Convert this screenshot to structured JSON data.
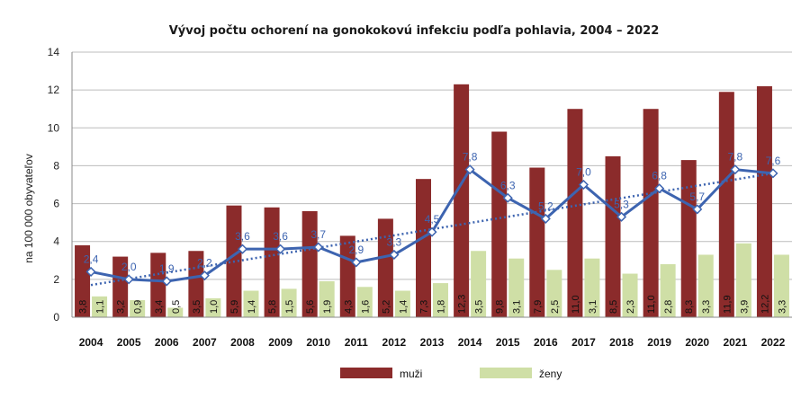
{
  "chart_data": {
    "type": "bar",
    "title": "Vývoj počtu ochorení na gonokokovú  infekciu  podľa pohlavia,  2004 – 2022",
    "ylabel": "na 100 000 obyvateľov",
    "xlabel": "",
    "ylim": [
      0,
      14
    ],
    "yticks": [
      0,
      2,
      4,
      6,
      8,
      10,
      12,
      14
    ],
    "categories": [
      "2004",
      "2005",
      "2006",
      "2007",
      "2008",
      "2009",
      "2010",
      "2011",
      "2012",
      "2013",
      "2014",
      "2015",
      "2016",
      "2017",
      "2018",
      "2019",
      "2020",
      "2021",
      "2022"
    ],
    "series": [
      {
        "name": "muži",
        "kind": "bar",
        "color": "#8b2b2b",
        "values": [
          3.8,
          3.2,
          3.4,
          3.5,
          5.9,
          5.8,
          5.6,
          4.3,
          5.2,
          7.3,
          12.3,
          9.8,
          7.9,
          11.0,
          8.5,
          11.0,
          8.3,
          11.9,
          12.2
        ]
      },
      {
        "name": "ženy",
        "kind": "bar",
        "color": "#cfdfa6",
        "values": [
          1.1,
          0.9,
          0.5,
          1.0,
          1.4,
          1.5,
          1.9,
          1.6,
          1.4,
          1.8,
          3.5,
          3.1,
          2.5,
          3.1,
          2.3,
          2.8,
          3.3,
          3.9,
          3.3
        ]
      },
      {
        "name": "",
        "kind": "line",
        "color": "#3d64b0",
        "values": [
          2.4,
          2.0,
          1.9,
          2.2,
          3.6,
          3.6,
          3.7,
          2.9,
          3.3,
          4.5,
          7.8,
          6.3,
          5.2,
          7.0,
          5.3,
          6.8,
          5.7,
          7.8,
          7.6
        ]
      }
    ],
    "trendline": {
      "style": "dotted",
      "color": "#3d64b0",
      "values": [
        1.7,
        7.6
      ]
    },
    "grid": true,
    "legend_position": "bottom"
  },
  "legend": {
    "men_label": "muži",
    "women_label": "ženy"
  }
}
